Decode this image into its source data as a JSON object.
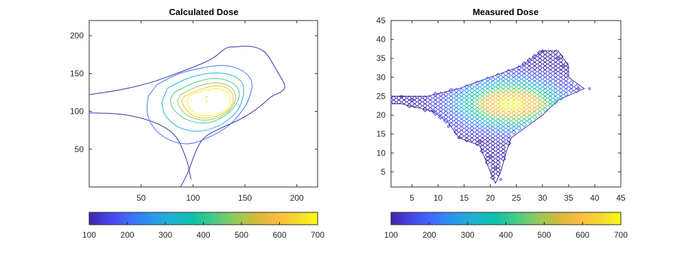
{
  "chart_data": [
    {
      "type": "contour",
      "title": "Calculated Dose",
      "xlabel": "",
      "ylabel": "",
      "xlim": [
        0,
        220
      ],
      "ylim": [
        0,
        220
      ],
      "xticks": [
        50,
        100,
        150,
        200
      ],
      "yticks": [
        50,
        100,
        150,
        200
      ],
      "contour_levels": [
        100,
        200,
        300,
        400,
        500,
        600,
        700
      ],
      "peak_center": [
        113,
        115
      ],
      "contours": [
        {
          "level": 100,
          "points": [
            [
              0,
              122
            ],
            [
              30,
              128
            ],
            [
              60,
              138
            ],
            [
              80,
              148
            ],
            [
              100,
              158
            ],
            [
              120,
              170
            ],
            [
              132,
              185
            ],
            [
              140,
              185
            ],
            [
              155,
              187
            ],
            [
              170,
              180
            ],
            [
              180,
              155
            ],
            [
              190,
              133
            ],
            [
              185,
              125
            ],
            [
              175,
              120
            ],
            [
              168,
              110
            ],
            [
              150,
              92
            ],
            [
              130,
              80
            ],
            [
              112,
              68
            ],
            [
              105,
              55
            ],
            [
              100,
              38
            ],
            [
              95,
              18
            ],
            [
              88,
              0
            ]
          ]
        },
        {
          "level": 100,
          "points": [
            [
              0,
              98
            ],
            [
              30,
              97
            ],
            [
              55,
              90
            ],
            [
              75,
              78
            ],
            [
              85,
              65
            ],
            [
              90,
              50
            ],
            [
              95,
              32
            ],
            [
              98,
              10
            ]
          ]
        },
        {
          "level": 200,
          "points": [
            [
              65,
              135
            ],
            [
              85,
              150
            ],
            [
              110,
              158
            ],
            [
              130,
              162
            ],
            [
              148,
              155
            ],
            [
              158,
              140
            ],
            [
              155,
              120
            ],
            [
              150,
              105
            ],
            [
              135,
              80
            ],
            [
              115,
              65
            ],
            [
              95,
              55
            ],
            [
              75,
              62
            ],
            [
              60,
              80
            ],
            [
              55,
              100
            ],
            [
              57,
              120
            ]
          ]
        },
        {
          "level": 300,
          "points": [
            [
              75,
              130
            ],
            [
              95,
              145
            ],
            [
              120,
              152
            ],
            [
              140,
              148
            ],
            [
              150,
              135
            ],
            [
              147,
              110
            ],
            [
              140,
              95
            ],
            [
              125,
              80
            ],
            [
              105,
              72
            ],
            [
              85,
              78
            ],
            [
              72,
              95
            ],
            [
              70,
              112
            ]
          ]
        },
        {
          "level": 400,
          "points": [
            [
              82,
              125
            ],
            [
              100,
              138
            ],
            [
              120,
              145
            ],
            [
              137,
              140
            ],
            [
              146,
              127
            ],
            [
              142,
              108
            ],
            [
              130,
              92
            ],
            [
              112,
              83
            ],
            [
              93,
              88
            ],
            [
              80,
              103
            ],
            [
              78,
              115
            ]
          ]
        },
        {
          "level": 500,
          "points": [
            [
              88,
              122
            ],
            [
              105,
              134
            ],
            [
              122,
              139
            ],
            [
              136,
              134
            ],
            [
              142,
              122
            ],
            [
              139,
              106
            ],
            [
              128,
              93
            ],
            [
              112,
              87
            ],
            [
              96,
              92
            ],
            [
              87,
              104
            ],
            [
              85,
              114
            ]
          ]
        },
        {
          "level": 600,
          "points": [
            [
              92,
              120
            ],
            [
              108,
              130
            ],
            [
              124,
              135
            ],
            [
              135,
              130
            ],
            [
              140,
              118
            ],
            [
              136,
              103
            ],
            [
              125,
              94
            ],
            [
              110,
              90
            ],
            [
              98,
              95
            ],
            [
              91,
              106
            ],
            [
              89,
              115
            ]
          ]
        },
        {
          "level": 700,
          "points": [
            [
              96,
              120
            ],
            [
              110,
              128
            ],
            [
              125,
              131
            ],
            [
              134,
              126
            ],
            [
              137,
              114
            ],
            [
              133,
              102
            ],
            [
              123,
              96
            ],
            [
              110,
              93
            ],
            [
              100,
              98
            ],
            [
              95,
              108
            ],
            [
              94,
              115
            ]
          ]
        }
      ]
    },
    {
      "type": "contour",
      "title": "Measured Dose",
      "xlabel": "",
      "ylabel": "",
      "xlim": [
        1,
        45
      ],
      "ylim": [
        1,
        45
      ],
      "xticks": [
        5,
        10,
        15,
        20,
        25,
        30,
        35,
        40,
        45
      ],
      "yticks": [
        5,
        10,
        15,
        20,
        25,
        30,
        35,
        40,
        45
      ],
      "contour_levels": [
        100,
        200,
        300,
        400,
        500,
        600,
        700
      ],
      "peak_center": [
        24,
        23
      ],
      "outline": [
        [
          1,
          25
        ],
        [
          8,
          25
        ],
        [
          14,
          27
        ],
        [
          18,
          29
        ],
        [
          22,
          31
        ],
        [
          26,
          33
        ],
        [
          30,
          37
        ],
        [
          33,
          37
        ],
        [
          35,
          33
        ],
        [
          35,
          30
        ],
        [
          38,
          27
        ],
        [
          33,
          24
        ],
        [
          30,
          20
        ],
        [
          27,
          17
        ],
        [
          24,
          14
        ],
        [
          23,
          10
        ],
        [
          22,
          5
        ],
        [
          21,
          2
        ],
        [
          20,
          5
        ],
        [
          18,
          12
        ],
        [
          14,
          14
        ],
        [
          12,
          18
        ],
        [
          9,
          21
        ],
        [
          3,
          23
        ],
        [
          1,
          23
        ]
      ]
    }
  ],
  "colorbars": [
    {
      "ticks": [
        100,
        200,
        300,
        400,
        500,
        600,
        700
      ],
      "range": [
        100,
        700
      ]
    },
    {
      "ticks": [
        100,
        200,
        300,
        400,
        500,
        600,
        700
      ],
      "range": [
        100,
        700
      ]
    }
  ],
  "colormap": [
    "#3e26a8",
    "#4746eb",
    "#3e6ffe",
    "#2797eb",
    "#1fb3d1",
    "#0cc2a6",
    "#48cb86",
    "#91c95c",
    "#d0ba3c",
    "#fbbb3e",
    "#f5d72f",
    "#f9fb15"
  ]
}
